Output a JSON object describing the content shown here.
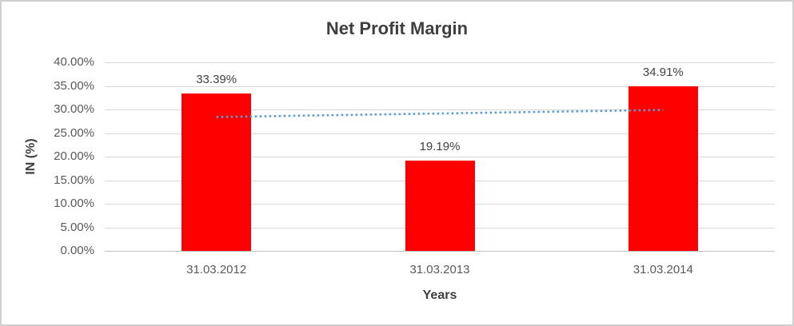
{
  "chart_data": {
    "type": "bar",
    "title": "Net Profit Margin",
    "xlabel": "Years",
    "ylabel": "IN (%)",
    "categories": [
      "31.03.2012",
      "31.03.2013",
      "31.03.2014"
    ],
    "values": [
      33.39,
      19.19,
      34.91
    ],
    "data_labels": [
      "33.39%",
      "19.19%",
      "34.91%"
    ],
    "ylim": [
      0,
      40
    ],
    "ytick_step": 5,
    "ytick_labels_top_to_bottom": [
      "40.00%",
      "35.00%",
      "30.00%",
      "25.00%",
      "20.00%",
      "15.00%",
      "10.00%",
      "5.00%",
      "0.00%"
    ],
    "grid": true,
    "legend": "none",
    "bar_color": "#ff0000",
    "gridline_color": "#d9d9d9",
    "trendline": {
      "type": "linear",
      "style": "dotted",
      "color": "#5b9bd5",
      "start_value": 28.4,
      "end_value": 29.9
    }
  }
}
